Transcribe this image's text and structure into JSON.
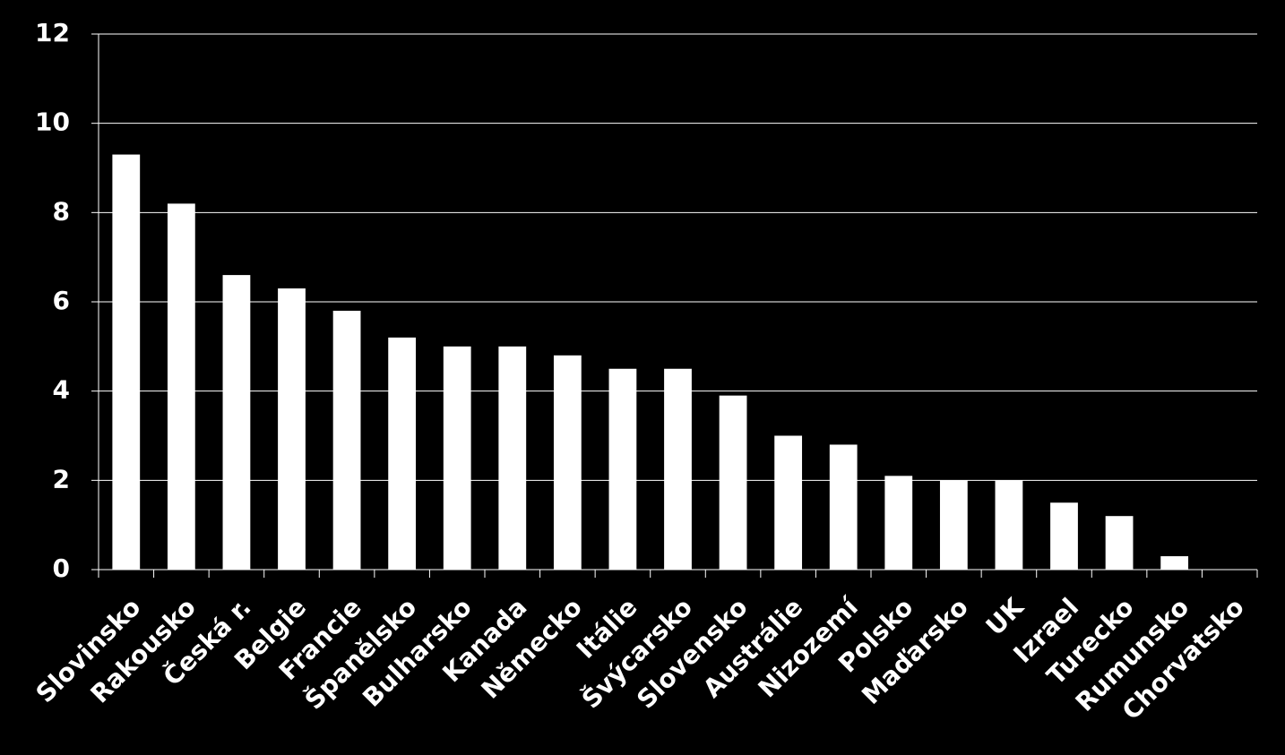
{
  "chart_data": {
    "type": "bar",
    "categories": [
      "Slovinsko",
      "Rakousko",
      "Česká r.",
      "Belgie",
      "Francie",
      "Španělsko",
      "Bulharsko",
      "Kanada",
      "Německo",
      "Itálie",
      "Švýcarsko",
      "Slovensko",
      "Austrálie",
      "Nizozemí",
      "Polsko",
      "Maďarsko",
      "UK",
      "Izrael",
      "Turecko",
      "Rumunsko",
      "Chorvatsko"
    ],
    "values": [
      9.3,
      8.2,
      6.6,
      6.3,
      5.8,
      5.2,
      5.0,
      5.0,
      4.8,
      4.5,
      4.5,
      3.9,
      3.0,
      2.8,
      2.1,
      2.0,
      2.0,
      1.5,
      1.2,
      0.3,
      0
    ],
    "color": "#ffffff",
    "ylim": [
      0,
      12
    ],
    "yticks": [
      0,
      2,
      4,
      6,
      8,
      10,
      12
    ],
    "grid": true
  }
}
